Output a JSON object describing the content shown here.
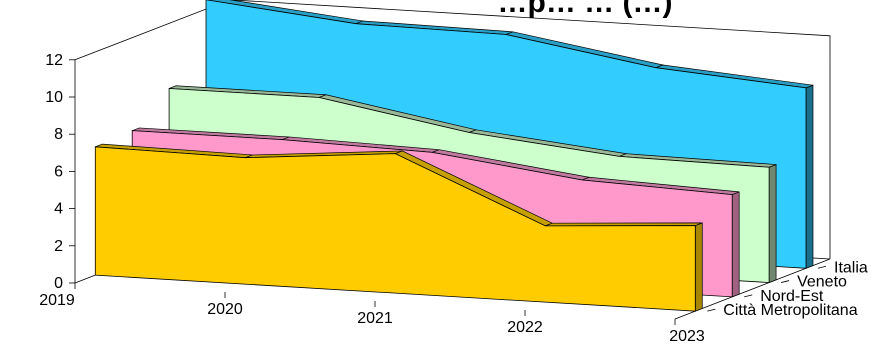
{
  "chart_data": {
    "type": "area",
    "title": "…p… … (…)",
    "x": [
      "2019",
      "2020",
      "2021",
      "2022",
      "2023"
    ],
    "yticks": [
      "0",
      "2",
      "4",
      "6",
      "8",
      "10",
      "12"
    ],
    "ylim": [
      0,
      12
    ],
    "grid": false,
    "colors": {
      "title": "#e8302a",
      "frame": "#000000"
    },
    "series": [
      {
        "name": "Città Metropolitana",
        "values": [
          6.9,
          6.8,
          7.5,
          4.1,
          4.6
        ],
        "color": "#ffcc00",
        "side": "#a88700",
        "top": "#c6a000"
      },
      {
        "name": "Nord-Est",
        "values": [
          7.0,
          7.0,
          6.8,
          5.8,
          5.5
        ],
        "color": "#ff99cc",
        "side": "#a06080",
        "top": "#c07aa0"
      },
      {
        "name": "Veneto",
        "values": [
          8.5,
          8.5,
          7.1,
          6.3,
          6.2
        ],
        "color": "#ccffcc",
        "side": "#708870",
        "top": "#98b898"
      },
      {
        "name": "Italia",
        "values": [
          12.5,
          11.7,
          11.6,
          10.3,
          9.7
        ],
        "color": "#33ccff",
        "side": "#1a6f8a",
        "top": "#2a9fc6"
      }
    ]
  }
}
